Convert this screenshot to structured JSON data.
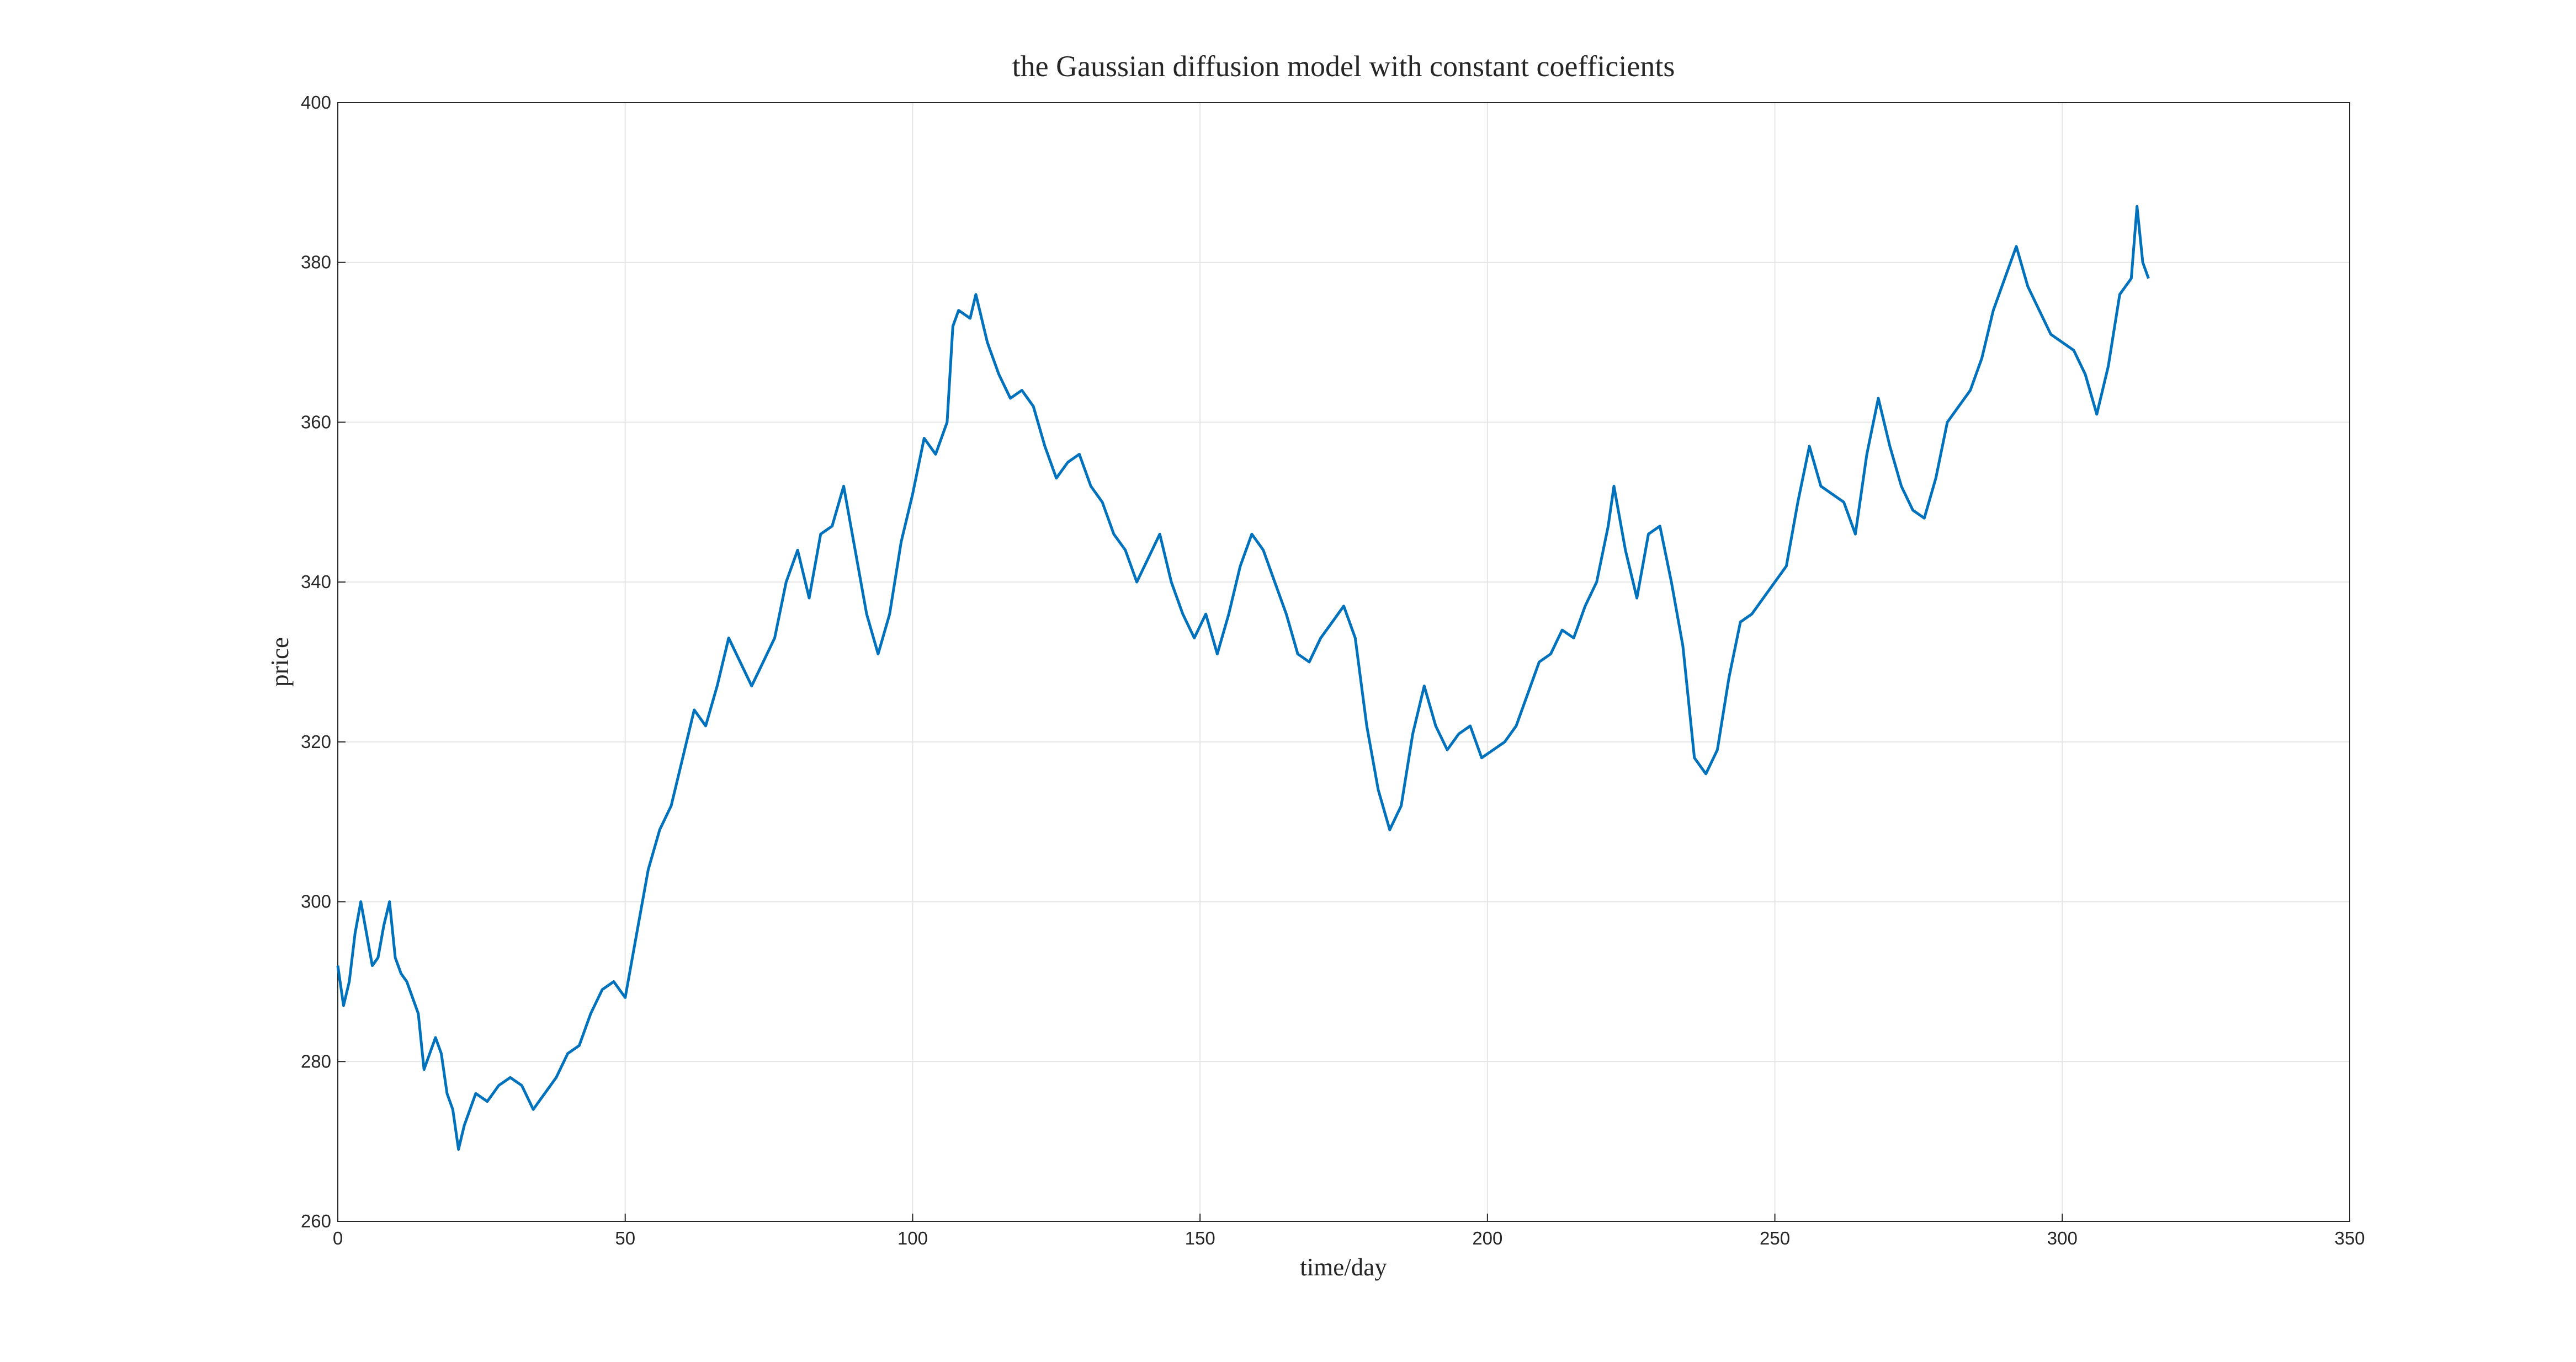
{
  "chart_data": {
    "type": "line",
    "title": "the Gaussian diffusion model with constant coefficients",
    "xlabel": "time/day",
    "ylabel": "price",
    "x": [
      0,
      1,
      2,
      3,
      4,
      5,
      6,
      7,
      8,
      9,
      10,
      11,
      12,
      14,
      15,
      16,
      17,
      18,
      19,
      20,
      21,
      22,
      24,
      26,
      28,
      30,
      32,
      34,
      36,
      38,
      40,
      42,
      44,
      46,
      48,
      50,
      52,
      54,
      56,
      58,
      60,
      62,
      64,
      66,
      68,
      70,
      72,
      74,
      76,
      78,
      80,
      82,
      84,
      86,
      88,
      90,
      92,
      94,
      96,
      98,
      100,
      102,
      104,
      106,
      107,
      108,
      110,
      111,
      113,
      115,
      117,
      119,
      121,
      123,
      125,
      127,
      129,
      131,
      133,
      135,
      137,
      139,
      141,
      143,
      145,
      147,
      149,
      151,
      153,
      155,
      157,
      159,
      161,
      163,
      165,
      167,
      169,
      171,
      173,
      175,
      177,
      179,
      181,
      183,
      185,
      187,
      189,
      191,
      193,
      195,
      197,
      199,
      201,
      203,
      205,
      207,
      209,
      211,
      213,
      215,
      217,
      219,
      221,
      222,
      224,
      226,
      228,
      230,
      232,
      234,
      236,
      238,
      240,
      242,
      244,
      246,
      248,
      250,
      252,
      254,
      256,
      258,
      260,
      262,
      264,
      266,
      268,
      270,
      272,
      274,
      276,
      278,
      280,
      282,
      284,
      286,
      288,
      290,
      292,
      294,
      296,
      298,
      300,
      302,
      304,
      306,
      308,
      310,
      312,
      313,
      314,
      315
    ],
    "values": [
      292,
      287,
      290,
      296,
      300,
      296,
      292,
      293,
      297,
      300,
      293,
      291,
      290,
      286,
      279,
      281,
      283,
      281,
      276,
      274,
      269,
      272,
      276,
      275,
      277,
      278,
      277,
      274,
      276,
      278,
      281,
      282,
      286,
      289,
      290,
      288,
      296,
      304,
      309,
      312,
      318,
      324,
      322,
      327,
      333,
      330,
      327,
      330,
      333,
      340,
      344,
      338,
      346,
      347,
      352,
      344,
      336,
      331,
      336,
      345,
      351,
      358,
      356,
      360,
      372,
      374,
      373,
      376,
      370,
      366,
      363,
      364,
      362,
      357,
      353,
      355,
      356,
      352,
      350,
      346,
      344,
      340,
      343,
      346,
      340,
      336,
      333,
      336,
      331,
      336,
      342,
      346,
      344,
      340,
      336,
      331,
      330,
      333,
      335,
      337,
      333,
      322,
      314,
      309,
      312,
      321,
      327,
      322,
      319,
      321,
      322,
      318,
      319,
      320,
      322,
      326,
      330,
      331,
      334,
      333,
      337,
      340,
      347,
      352,
      344,
      338,
      346,
      347,
      340,
      332,
      318,
      316,
      319,
      328,
      335,
      336,
      338,
      340,
      342,
      350,
      357,
      352,
      351,
      350,
      346,
      356,
      363,
      357,
      352,
      349,
      348,
      353,
      360,
      362,
      364,
      368,
      374,
      378,
      382,
      377,
      374,
      371,
      370,
      369,
      366,
      361,
      367,
      376,
      378,
      387,
      380,
      378
    ],
    "color": "#0072bd",
    "xlim": [
      0,
      350
    ],
    "xticks": [
      0,
      50,
      100,
      150,
      200,
      250,
      300,
      350
    ],
    "ylim": [
      260,
      400
    ],
    "yticks": [
      260,
      280,
      300,
      320,
      340,
      360,
      380,
      400
    ],
    "grid": true
  }
}
